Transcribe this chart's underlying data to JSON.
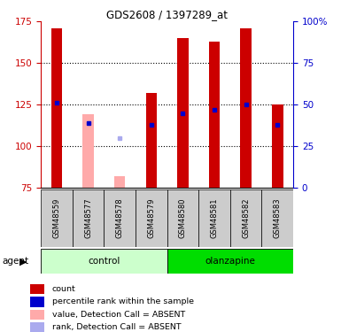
{
  "title": "GDS2608 / 1397289_at",
  "samples": [
    "GSM48559",
    "GSM48577",
    "GSM48578",
    "GSM48579",
    "GSM48580",
    "GSM48581",
    "GSM48582",
    "GSM48583"
  ],
  "red_values": [
    171,
    null,
    null,
    132,
    165,
    163,
    171,
    125
  ],
  "red_absent_values": [
    null,
    119,
    82,
    null,
    null,
    null,
    null,
    null
  ],
  "blue_values": [
    126,
    114,
    null,
    113,
    120,
    122,
    125,
    113
  ],
  "blue_absent_values": [
    null,
    null,
    105,
    null,
    null,
    null,
    null,
    null
  ],
  "ylim": [
    75,
    175
  ],
  "y2lim": [
    0,
    100
  ],
  "yticks": [
    75,
    100,
    125,
    150,
    175
  ],
  "y2ticks": [
    0,
    25,
    50,
    75,
    100
  ],
  "y2tick_labels": [
    "0",
    "25",
    "50",
    "75",
    "100%"
  ],
  "bar_width": 0.35,
  "red_color": "#cc0000",
  "blue_color": "#0000cc",
  "pink_color": "#ffaaaa",
  "light_blue_color": "#aaaaee",
  "sample_box_color": "#cccccc",
  "control_bg": "#ccffcc",
  "olanzapine_bg": "#00dd00",
  "legend_items": [
    [
      "#cc0000",
      "count"
    ],
    [
      "#0000cc",
      "percentile rank within the sample"
    ],
    [
      "#ffaaaa",
      "value, Detection Call = ABSENT"
    ],
    [
      "#aaaaee",
      "rank, Detection Call = ABSENT"
    ]
  ]
}
